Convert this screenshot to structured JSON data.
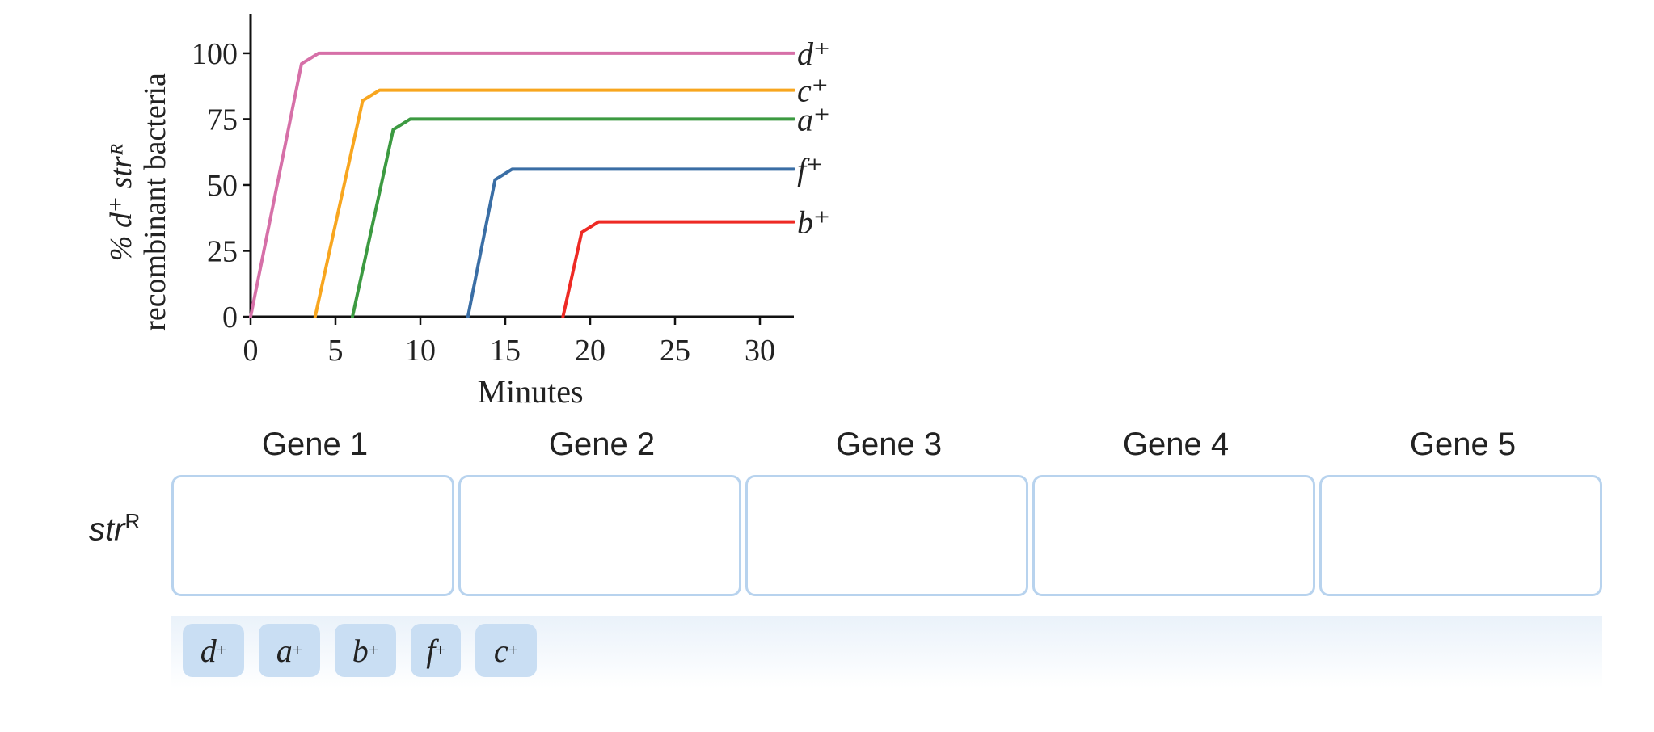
{
  "chart_data": {
    "type": "line",
    "title": "",
    "xlabel": "Minutes",
    "ylabel_line1": "% d⁺ strᴿ",
    "ylabel_line2": "recombinant bacteria",
    "xlim": [
      0,
      32
    ],
    "ylim": [
      0,
      115
    ],
    "xticks": [
      0,
      5,
      10,
      15,
      20,
      25,
      30
    ],
    "yticks": [
      0,
      25,
      50,
      75,
      100
    ],
    "grid": false,
    "series": [
      {
        "name": "d⁺",
        "label_base": "d",
        "color": "#d670a8",
        "x": [
          0,
          3,
          4,
          32
        ],
        "y": [
          0,
          96,
          100,
          100
        ]
      },
      {
        "name": "c⁺",
        "label_base": "c",
        "color": "#f8a61f",
        "x": [
          3.8,
          6.6,
          7.6,
          32
        ],
        "y": [
          0,
          82,
          86,
          86
        ]
      },
      {
        "name": "a⁺",
        "label_base": "a",
        "color": "#3c9a41",
        "x": [
          6,
          8.4,
          9.4,
          32
        ],
        "y": [
          0,
          71,
          75,
          75
        ]
      },
      {
        "name": "f⁺",
        "label_base": "f",
        "color": "#3a6ea5",
        "x": [
          12.8,
          14.4,
          15.4,
          32
        ],
        "y": [
          0,
          52,
          56,
          56
        ]
      },
      {
        "name": "b⁺",
        "label_base": "b",
        "color": "#ee2a24",
        "x": [
          18.4,
          19.5,
          20.5,
          32
        ],
        "y": [
          0,
          32,
          36,
          36
        ]
      }
    ]
  },
  "genes": {
    "headers": [
      "Gene 1",
      "Gene 2",
      "Gene 3",
      "Gene 4",
      "Gene 5"
    ]
  },
  "row_label": {
    "base": "str",
    "sup": "R"
  },
  "chips": [
    {
      "base": "d",
      "sup": "+"
    },
    {
      "base": "a",
      "sup": "+"
    },
    {
      "base": "b",
      "sup": "+"
    },
    {
      "base": "f",
      "sup": "+"
    },
    {
      "base": "c",
      "sup": "+"
    }
  ]
}
